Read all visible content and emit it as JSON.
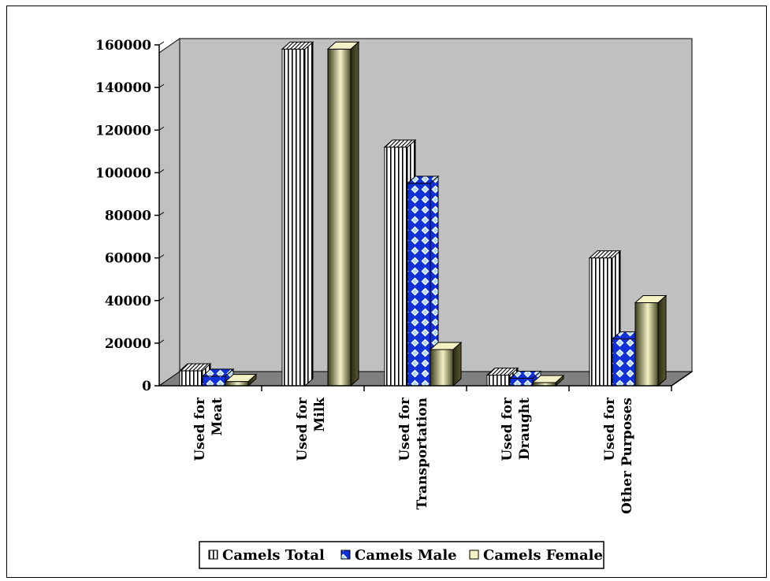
{
  "chart_data": {
    "type": "bar",
    "style": "3d-clustered-column",
    "categories": [
      [
        "Used for",
        "Meat"
      ],
      [
        "Used for",
        "Milk"
      ],
      [
        "Used for",
        "Transportation"
      ],
      [
        "Used for",
        "Draught"
      ],
      [
        "Used for",
        "Other Purposes"
      ]
    ],
    "series": [
      {
        "name": "Camels Total",
        "pattern": "vertical-stripes",
        "values": [
          7000,
          158000,
          112000,
          5000,
          60000
        ]
      },
      {
        "name": "Camels Male",
        "pattern": "blue-diamonds",
        "values": [
          4500,
          0,
          95000,
          3500,
          22000
        ]
      },
      {
        "name": "Camels Female",
        "pattern": "olive-gradient",
        "values": [
          2000,
          158000,
          17000,
          1500,
          39000
        ]
      }
    ],
    "ylim": [
      0,
      160000
    ],
    "yticks": [
      "0",
      "20000",
      "40000",
      "60000",
      "80000",
      "100000",
      "120000",
      "140000",
      "160000"
    ],
    "ytick_values": [
      0,
      20000,
      40000,
      60000,
      80000,
      100000,
      120000,
      140000,
      160000
    ],
    "grid": false,
    "legend_position": "bottom",
    "colors": {
      "plot_wall": "#c0c0c0",
      "floor": "#808080",
      "male_blue": "#1030d8",
      "female_light": "#f4f2c4",
      "female_dark": "#3a3a1c"
    }
  }
}
